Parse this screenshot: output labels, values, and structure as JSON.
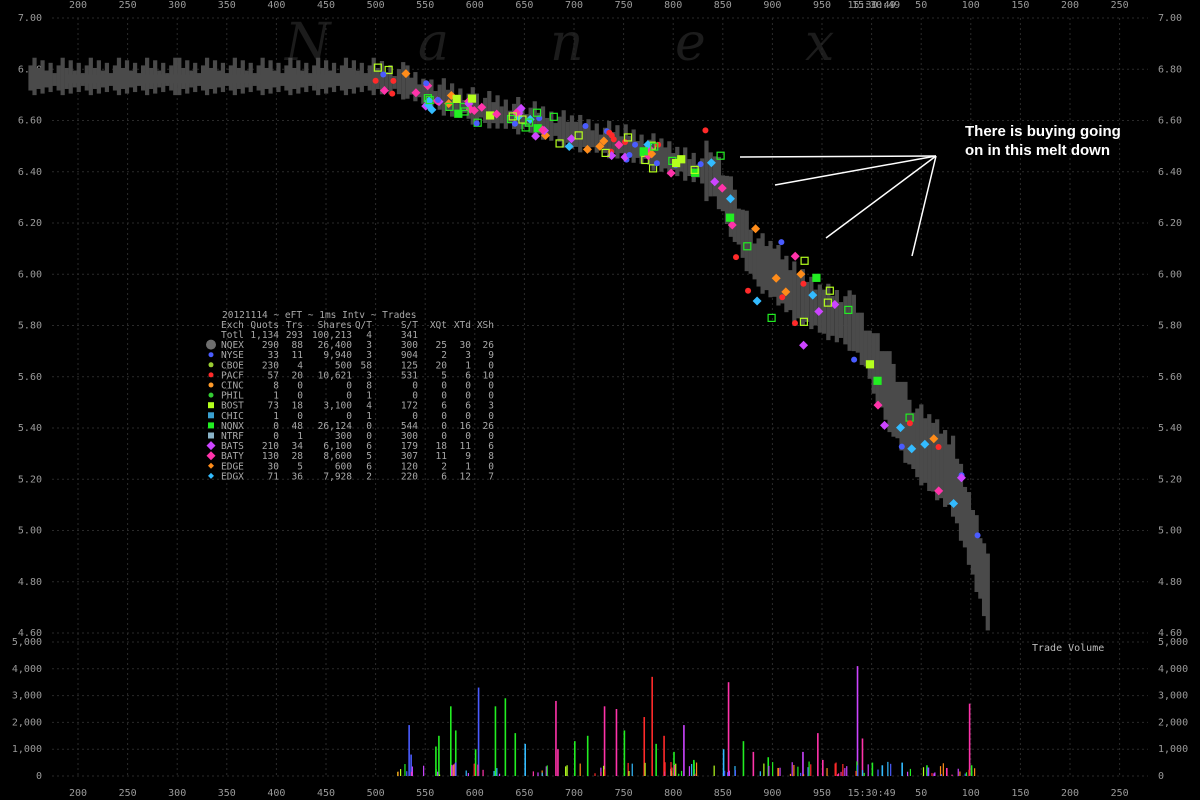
{
  "watermark_letters": [
    "N",
    "a",
    "n",
    "e",
    "x"
  ],
  "header_time": "15:30:49",
  "annotation": {
    "line1": "There is buying going",
    "line2": "on in this melt down"
  },
  "stats": {
    "title": "20121114 ~ eFT ~ 1ms Intv ~ Trades",
    "columns": [
      "Exch",
      "Quots",
      "Trs",
      "Shares",
      "Q/T",
      "S/T",
      "XQt",
      "XTd",
      "XSh"
    ],
    "rows": [
      {
        "cells": [
          "Totl",
          "1,134",
          "293",
          "100,213",
          "4",
          "341",
          "",
          "",
          ""
        ],
        "color": "",
        "marker": "none"
      },
      {
        "cells": [
          "NQEX",
          "290",
          "88",
          "26,400",
          "3",
          "300",
          "25",
          "30",
          "26"
        ],
        "color": "#6e6e6e",
        "marker": "circle-big"
      },
      {
        "cells": [
          "NYSE",
          "33",
          "11",
          "9,940",
          "3",
          "904",
          "2",
          "3",
          "9"
        ],
        "color": "#4a5cff",
        "marker": "circle"
      },
      {
        "cells": [
          "CBOE",
          "230",
          "4",
          "500",
          "58",
          "125",
          "20",
          "1",
          "0"
        ],
        "color": "#9acd32",
        "marker": "circle"
      },
      {
        "cells": [
          "PACF",
          "57",
          "20",
          "10,621",
          "3",
          "531",
          "5",
          "6",
          "10"
        ],
        "color": "#ff2a2a",
        "marker": "circle"
      },
      {
        "cells": [
          "CINC",
          "8",
          "0",
          "0",
          "8",
          "0",
          "0",
          "0",
          "0"
        ],
        "color": "#ff9a2a",
        "marker": "circle"
      },
      {
        "cells": [
          "PHIL",
          "1",
          "0",
          "0",
          "1",
          "0",
          "0",
          "0",
          "0"
        ],
        "color": "#33cc33",
        "marker": "circle"
      },
      {
        "cells": [
          "BOST",
          "73",
          "18",
          "3,100",
          "4",
          "172",
          "6",
          "6",
          "3"
        ],
        "color": "#b4ff1e",
        "marker": "square"
      },
      {
        "cells": [
          "CHIC",
          "1",
          "0",
          "0",
          "1",
          "0",
          "0",
          "0",
          "0"
        ],
        "color": "#3aa0d0",
        "marker": "square"
      },
      {
        "cells": [
          "NQNX",
          "0",
          "48",
          "26,124",
          "0",
          "544",
          "0",
          "16",
          "26"
        ],
        "color": "#22ee22",
        "marker": "square"
      },
      {
        "cells": [
          "NTRF",
          "0",
          "1",
          "300",
          "0",
          "300",
          "0",
          "0",
          "0"
        ],
        "color": "#8ab4c8",
        "marker": "square"
      },
      {
        "cells": [
          "BATS",
          "210",
          "34",
          "6,100",
          "6",
          "179",
          "18",
          "11",
          "6"
        ],
        "color": "#cc44ff",
        "marker": "diamond-big"
      },
      {
        "cells": [
          "BATY",
          "130",
          "28",
          "8,600",
          "5",
          "307",
          "11",
          "9",
          "8"
        ],
        "color": "#ff33aa",
        "marker": "diamond-big"
      },
      {
        "cells": [
          "EDGE",
          "30",
          "5",
          "600",
          "6",
          "120",
          "2",
          "1",
          "0"
        ],
        "color": "#ff8c1a",
        "marker": "diamond"
      },
      {
        "cells": [
          "EDGX",
          "71",
          "36",
          "7,928",
          "2",
          "220",
          "6",
          "12",
          "7"
        ],
        "color": "#33bbff",
        "marker": "diamond"
      }
    ]
  },
  "chart_data": [
    {
      "type": "line",
      "title": "",
      "xlabel": "",
      "ylabel": "",
      "x_ticks": [
        "200",
        "250",
        "300",
        "350",
        "400",
        "450",
        "500",
        "550",
        "600",
        "650",
        "700",
        "750",
        "800",
        "850",
        "900",
        "950",
        "15:30:49",
        "50",
        "100",
        "150",
        "200",
        "250"
      ],
      "ylim": [
        4.6,
        7.0
      ],
      "y_ticks": [
        "7.00",
        "6.80",
        "6.60",
        "6.40",
        "6.20",
        "6.00",
        "5.80",
        "5.60",
        "5.40",
        "5.20",
        "5.00",
        "4.80",
        "4.60"
      ],
      "grid": true,
      "series": [
        {
          "points": [
            [
              150,
              6.76
            ],
            [
              300,
              6.76
            ],
            [
              500,
              6.76
            ],
            [
              530,
              6.74
            ],
            [
              550,
              6.7
            ],
            [
              600,
              6.64
            ],
            [
              650,
              6.6
            ],
            [
              700,
              6.54
            ],
            [
              750,
              6.5
            ],
            [
              790,
              6.45
            ],
            [
              810,
              6.42
            ],
            [
              840,
              6.38
            ],
            [
              860,
              6.22
            ],
            [
              880,
              6.05
            ],
            [
              900,
              6.0
            ],
            [
              920,
              5.92
            ],
            [
              950,
              5.85
            ],
            [
              980,
              5.8
            ],
            [
              1000,
              5.65
            ],
            [
              1020,
              5.5
            ],
            [
              1040,
              5.35
            ],
            [
              1060,
              5.28
            ],
            [
              1080,
              5.2
            ],
            [
              1100,
              4.95
            ],
            [
              1115,
              4.75
            ],
            [
              1120,
              4.62
            ]
          ]
        }
      ]
    },
    {
      "type": "bar",
      "title": "Trade Volume",
      "ylim": [
        0,
        5000
      ],
      "y_ticks": [
        "0",
        "1,000",
        "2,000",
        "3,000",
        "4,000",
        "5,000"
      ],
      "bars": [
        [
          533,
          1900,
          "#4a5cff"
        ],
        [
          535,
          800,
          "#4a5cff"
        ],
        [
          560,
          1100,
          "#22ee22"
        ],
        [
          563,
          1500,
          "#22ee22"
        ],
        [
          575,
          2600,
          "#22ee22"
        ],
        [
          580,
          1700,
          "#22ee22"
        ],
        [
          600,
          1000,
          "#22ee22"
        ],
        [
          603,
          3300,
          "#4a5cff"
        ],
        [
          620,
          2600,
          "#22ee22"
        ],
        [
          630,
          2900,
          "#22ee22"
        ],
        [
          640,
          1600,
          "#22ee22"
        ],
        [
          650,
          1200,
          "#33bbff"
        ],
        [
          681,
          2800,
          "#ff33aa"
        ],
        [
          683,
          1000,
          "#ff33aa"
        ],
        [
          700,
          1300,
          "#22ee22"
        ],
        [
          713,
          1500,
          "#22ee22"
        ],
        [
          730,
          2600,
          "#ff33aa"
        ],
        [
          742,
          2500,
          "#ff33aa"
        ],
        [
          750,
          1700,
          "#22ee22"
        ],
        [
          770,
          2200,
          "#ff2a2a"
        ],
        [
          778,
          3700,
          "#ff2a2a"
        ],
        [
          782,
          1200,
          "#22ee22"
        ],
        [
          790,
          1500,
          "#ff2a2a"
        ],
        [
          800,
          900,
          "#22ee22"
        ],
        [
          810,
          1900,
          "#cc44ff"
        ],
        [
          820,
          600,
          "#22ee22"
        ],
        [
          850,
          1000,
          "#33bbff"
        ],
        [
          855,
          3500,
          "#ff33aa"
        ],
        [
          870,
          1300,
          "#22ee22"
        ],
        [
          880,
          900,
          "#ff33aa"
        ],
        [
          895,
          700,
          "#22ee22"
        ],
        [
          905,
          300,
          "#ff8c1a"
        ],
        [
          930,
          900,
          "#cc44ff"
        ],
        [
          945,
          1600,
          "#ff33aa"
        ],
        [
          950,
          600,
          "#ff33aa"
        ],
        [
          985,
          4100,
          "#cc44ff"
        ],
        [
          990,
          1400,
          "#ff33aa"
        ],
        [
          1000,
          500,
          "#22ee22"
        ],
        [
          1010,
          400,
          "#33bbff"
        ],
        [
          1030,
          500,
          "#33bbff"
        ],
        [
          1055,
          400,
          "#22ee22"
        ],
        [
          1075,
          300,
          "#ff33aa"
        ],
        [
          1098,
          2700,
          "#ff33aa"
        ],
        [
          1100,
          400,
          "#22ee22"
        ]
      ]
    }
  ]
}
